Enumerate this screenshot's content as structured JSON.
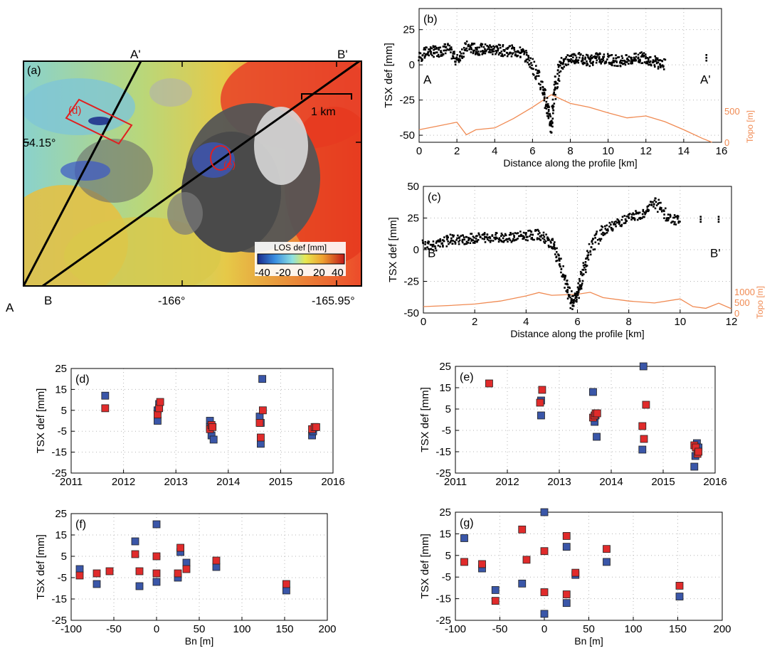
{
  "colors": {
    "blue_marker": "#3a56a8",
    "red_marker": "#e02b2b",
    "topo_line": "#f08a52",
    "profile_points": "#000000",
    "map_outline": "#e02020"
  },
  "chart_data": [
    {
      "id": "a",
      "type": "map",
      "panel_label": "(a)",
      "profile_labels": [
        "A",
        "A'",
        "B",
        "B'"
      ],
      "region_labels": [
        "(d)",
        "(e)"
      ],
      "scale_bar_label": "1 km",
      "lat_label": "54.15°",
      "lon_labels": [
        "-166°",
        "-165.95°"
      ],
      "colorbar": {
        "title": "LOS def [mm]",
        "ticks": [
          "-40",
          "-20",
          "0",
          "20",
          "40"
        ],
        "range": [
          -40,
          40
        ]
      }
    },
    {
      "id": "b",
      "type": "scatter",
      "panel_label": "(b)",
      "xlabel": "Distance along the profile [km]",
      "ylabel": "TSX def [mm]",
      "y2label": "Topo [m]",
      "start_label": "A",
      "end_label": "A'",
      "xlim": [
        0,
        16
      ],
      "ylim": [
        -55,
        40
      ],
      "x_ticks": [
        0,
        2,
        4,
        6,
        8,
        10,
        12,
        14,
        16
      ],
      "y_ticks": [
        25,
        0,
        -25,
        -50
      ],
      "y2_ticks": [
        0,
        500
      ],
      "deformation_profile": {
        "x": [
          0.0,
          0.5,
          1.0,
          1.5,
          2.0,
          2.5,
          3.0,
          3.5,
          4.0,
          4.5,
          5.0,
          5.5,
          6.0,
          6.5,
          6.8,
          7.0,
          7.2,
          7.5,
          8.0,
          8.5,
          9.0,
          9.5,
          10.0,
          10.5,
          11.0,
          11.5,
          12.0,
          12.5,
          13.0
        ],
        "y": [
          5,
          10,
          9,
          12,
          3,
          13,
          11,
          11,
          11,
          10,
          10,
          8,
          0,
          -15,
          -30,
          -45,
          -15,
          0,
          5,
          5,
          3,
          5,
          4,
          3,
          3,
          5,
          5,
          2,
          0
        ]
      },
      "isolated_points": {
        "x": [
          15.2
        ],
        "y": [
          5
        ]
      },
      "topography": {
        "x": [
          0,
          1,
          2,
          2.5,
          3,
          4,
          5,
          6,
          7,
          8,
          9,
          10,
          11,
          12,
          13,
          14,
          15,
          15.5
        ],
        "y": [
          200,
          260,
          320,
          120,
          200,
          230,
          380,
          560,
          760,
          620,
          560,
          470,
          390,
          420,
          330,
          200,
          60,
          0
        ]
      }
    },
    {
      "id": "c",
      "type": "scatter",
      "panel_label": "(c)",
      "xlabel": "Distance along the profile [km]",
      "ylabel": "TSX def [mm]",
      "y2label": "Topo [m]",
      "start_label": "B",
      "end_label": "B'",
      "xlim": [
        0,
        12
      ],
      "ylim": [
        -50,
        50
      ],
      "x_ticks": [
        0,
        2,
        4,
        6,
        8,
        10,
        12
      ],
      "y_ticks": [
        50,
        25,
        0,
        -25,
        -50
      ],
      "y2_ticks": [
        0,
        500,
        1000
      ],
      "deformation_profile": {
        "x": [
          0.0,
          0.5,
          1.0,
          1.5,
          2.0,
          2.5,
          3.0,
          3.5,
          4.0,
          4.5,
          5.0,
          5.3,
          5.6,
          5.8,
          6.0,
          6.2,
          6.5,
          7.0,
          7.5,
          8.0,
          8.5,
          9.0,
          9.5,
          10.0
        ],
        "y": [
          5,
          3,
          8,
          8,
          9,
          10,
          10,
          10,
          11,
          12,
          5,
          -10,
          -30,
          -43,
          -35,
          -20,
          0,
          15,
          20,
          25,
          28,
          38,
          25,
          22
        ]
      },
      "isolated_points": {
        "x": [
          10.8,
          11.5
        ],
        "y": [
          24,
          24
        ]
      },
      "topography": {
        "x": [
          0,
          1,
          2,
          3,
          4,
          4.5,
          5,
          6,
          6.5,
          7,
          8,
          9,
          10,
          10.5,
          11,
          11.5,
          12
        ],
        "y": [
          300,
          350,
          420,
          560,
          800,
          960,
          830,
          880,
          970,
          720,
          560,
          470,
          660,
          300,
          220,
          460,
          200
        ]
      }
    },
    {
      "id": "d",
      "type": "scatter",
      "panel_label": "(d)",
      "xlabel": "",
      "ylabel": "TSX def [mm]",
      "xlim": [
        2011,
        2016
      ],
      "ylim": [
        -25,
        25
      ],
      "x_ticks": [
        2011,
        2012,
        2013,
        2014,
        2015,
        2016
      ],
      "y_ticks": [
        25,
        15,
        5,
        -5,
        -15,
        -25
      ],
      "series": [
        {
          "x": [
            2011.65,
            2012.65,
            2012.65,
            2012.68,
            2013.65,
            2013.68,
            2013.72,
            2013.65,
            2014.6,
            2014.62,
            2014.62,
            2014.65,
            2015.6,
            2015.62,
            2015.65
          ],
          "y": [
            12,
            5,
            0,
            8,
            0,
            -7,
            -9,
            -3,
            2,
            -11,
            -1,
            20,
            -7,
            -5,
            -3
          ]
        },
        {
          "x": [
            2011.65,
            2012.65,
            2012.68,
            2012.7,
            2013.65,
            2013.68,
            2013.7,
            2014.6,
            2014.62,
            2014.66,
            2015.6,
            2015.65,
            2015.68
          ],
          "y": [
            6,
            3,
            6,
            9,
            -4,
            -2,
            -3,
            -1,
            -8,
            5,
            -4,
            -3,
            -3
          ]
        }
      ]
    },
    {
      "id": "e",
      "type": "scatter",
      "panel_label": "(e)",
      "xlabel": "",
      "ylabel": "TSX def [mm]",
      "xlim": [
        2011,
        2016
      ],
      "ylim": [
        -25,
        25
      ],
      "x_ticks": [
        2011,
        2012,
        2013,
        2014,
        2015,
        2016
      ],
      "y_ticks": [
        25,
        15,
        5,
        -5,
        -15,
        -25
      ],
      "series": [
        {
          "x": [
            2012.65,
            2012.65,
            2013.65,
            2013.68,
            2013.72,
            2013.7,
            2014.6,
            2014.62,
            2015.6,
            2015.62,
            2015.65,
            2015.68
          ],
          "y": [
            2,
            9,
            13,
            -1,
            -8,
            2,
            -14,
            25,
            -22,
            -17,
            -11,
            -13
          ]
        },
        {
          "x": [
            2011.65,
            2012.63,
            2012.67,
            2013.65,
            2013.68,
            2013.7,
            2013.73,
            2014.6,
            2014.63,
            2014.67,
            2015.6,
            2015.63,
            2015.66,
            2015.68
          ],
          "y": [
            17,
            8,
            14,
            1,
            2,
            3,
            3,
            -3,
            -9,
            7,
            -12,
            -13,
            -16,
            -15
          ]
        }
      ]
    },
    {
      "id": "f",
      "type": "scatter",
      "panel_label": "(f)",
      "xlabel": "Bn [m]",
      "ylabel": "TSX def [mm]",
      "xlim": [
        -100,
        200
      ],
      "ylim": [
        -25,
        25
      ],
      "x_ticks": [
        -100,
        -50,
        0,
        50,
        100,
        150,
        200
      ],
      "y_ticks": [
        25,
        15,
        5,
        -5,
        -15,
        -25
      ],
      "series": [
        {
          "x": [
            -90,
            -70,
            -25,
            -20,
            0,
            0,
            25,
            28,
            35,
            70,
            152
          ],
          "y": [
            -1,
            -8,
            12,
            -9,
            20,
            -7,
            -5,
            7,
            2,
            0,
            -11
          ]
        },
        {
          "x": [
            -90,
            -70,
            -55,
            -25,
            -20,
            0,
            0,
            25,
            28,
            35,
            70,
            152
          ],
          "y": [
            -4,
            -3,
            -2,
            6,
            -2,
            5,
            -3,
            -3,
            9,
            -1,
            3,
            -8
          ]
        }
      ]
    },
    {
      "id": "g",
      "type": "scatter",
      "panel_label": "(g)",
      "xlabel": "Bn [m]",
      "ylabel": "TSX def [mm]",
      "xlim": [
        -100,
        200
      ],
      "ylim": [
        -25,
        25
      ],
      "x_ticks": [
        -100,
        -50,
        0,
        50,
        100,
        150,
        200
      ],
      "y_ticks": [
        25,
        15,
        5,
        -5,
        -15,
        -25
      ],
      "series": [
        {
          "x": [
            -90,
            -70,
            -55,
            -25,
            0,
            0,
            25,
            25,
            35,
            70,
            152
          ],
          "y": [
            13,
            -1,
            -11,
            -8,
            25,
            -22,
            -17,
            9,
            -4,
            2,
            -14
          ]
        },
        {
          "x": [
            -90,
            -70,
            -55,
            -25,
            -20,
            0,
            0,
            25,
            25,
            35,
            70,
            152
          ],
          "y": [
            2,
            1,
            -16,
            17,
            3,
            7,
            -12,
            -13,
            14,
            -3,
            8,
            -9
          ]
        }
      ]
    }
  ]
}
